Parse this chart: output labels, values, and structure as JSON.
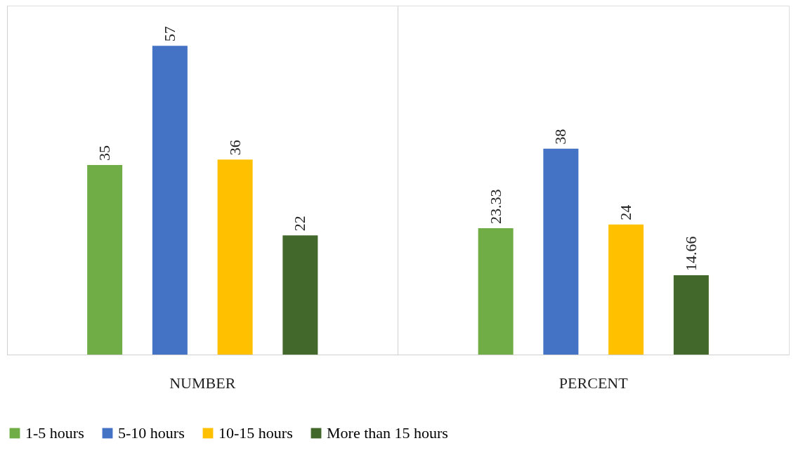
{
  "chart_data": {
    "type": "bar",
    "categories": [
      "NUMBER",
      "PERCENT"
    ],
    "series": [
      {
        "name": "1-5 hours",
        "color": "#70ad47",
        "values": [
          35,
          23.33
        ]
      },
      {
        "name": "5-10 hours",
        "color": "#4472c4",
        "values": [
          57,
          38
        ]
      },
      {
        "name": "10-15 hours",
        "color": "#ffc000",
        "values": [
          36,
          24
        ]
      },
      {
        "name": "More than 15 hours",
        "color": "#43682b",
        "values": [
          22,
          14.66
        ]
      }
    ],
    "data_labels": true,
    "legend": "bottom",
    "grid": "x",
    "tick_labels": "x"
  }
}
